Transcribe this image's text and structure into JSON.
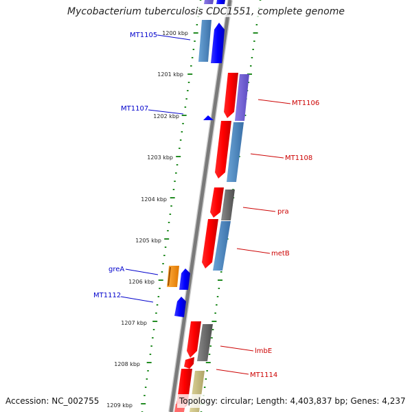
{
  "title": "Mycobacterium tuberculosis CDC1551, complete genome",
  "footer": {
    "accession": "Accession: NC_002755",
    "topology": "Topology: circular; Length: 4,403,837 bp; Genes: 4,237"
  },
  "colors": {
    "backbone": "#888888",
    "ticks": "#228b22",
    "reverse_strand_label": "#0000cc",
    "forward_strand_label": "#cc0000"
  },
  "scale": {
    "unit": "kbp",
    "ticks": [
      "1200 kbp",
      "1201 kbp",
      "1202 kbp",
      "1203 kbp",
      "1204 kbp",
      "1205 kbp",
      "1206 kbp",
      "1207 kbp",
      "1208 kbp",
      "1209 kbp"
    ]
  },
  "gene_labels": {
    "reverse": [
      "MT1105",
      "MT1107",
      "greA",
      "MT1112"
    ],
    "forward": [
      "MT1106",
      "MT1108",
      "pra",
      "metB",
      "lmbE",
      "MT1114"
    ]
  }
}
